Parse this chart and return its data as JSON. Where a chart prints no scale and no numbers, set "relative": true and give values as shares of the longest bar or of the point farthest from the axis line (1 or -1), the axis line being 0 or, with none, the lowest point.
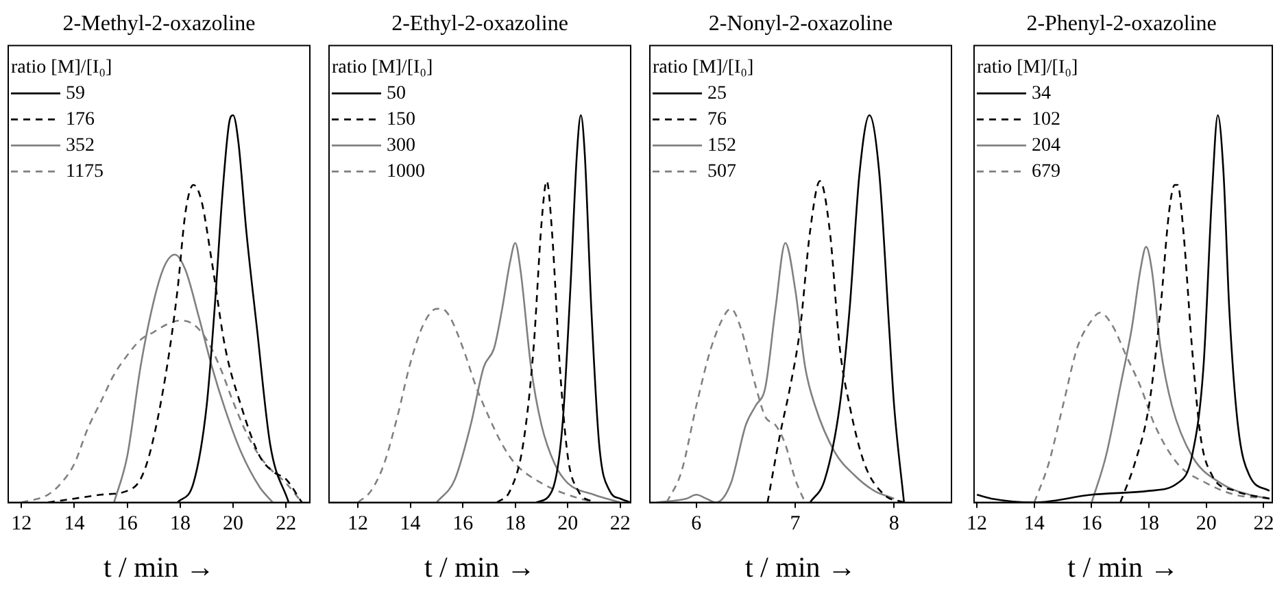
{
  "chart_data": [
    {
      "type": "line",
      "title": "2-Methyl-2-oxazoline",
      "xlabel": "t / min →",
      "legend_title": "ratio [M]/[I₀]",
      "legend": "top left",
      "relative": true,
      "marker": "none",
      "grid": false,
      "xlim": [
        11.5,
        22.9
      ],
      "xticks": [
        12,
        14,
        16,
        18,
        20,
        22
      ],
      "series": [
        {
          "name": "59",
          "color": "#000000",
          "line_style": "solid",
          "x": [
            17.9,
            18.5,
            19.0,
            19.3,
            19.6,
            19.85,
            20.0,
            20.2,
            20.5,
            20.9,
            21.4,
            22.1
          ],
          "values": [
            0,
            0.05,
            0.25,
            0.5,
            0.8,
            0.98,
            1,
            0.93,
            0.7,
            0.45,
            0.15,
            0
          ]
        },
        {
          "name": "176",
          "color": "#000000",
          "line_style": "dashed",
          "x": [
            13.0,
            14,
            15,
            16,
            16.5,
            16.9,
            17.5,
            17.9,
            18.2,
            18.5,
            18.8,
            19.2,
            19.7,
            20.3,
            21,
            21.5,
            22,
            22.6
          ],
          "values": [
            0,
            0.01,
            0.02,
            0.03,
            0.06,
            0.14,
            0.35,
            0.55,
            0.75,
            0.82,
            0.78,
            0.62,
            0.4,
            0.25,
            0.12,
            0.08,
            0.06,
            0
          ]
        },
        {
          "name": "352",
          "color": "#808080",
          "line_style": "solid",
          "x": [
            15.5,
            16,
            16.5,
            17,
            17.4,
            17.8,
            18.2,
            18.7,
            19.2,
            19.7,
            20.3,
            21,
            21.5
          ],
          "values": [
            0,
            0.12,
            0.35,
            0.52,
            0.61,
            0.64,
            0.6,
            0.48,
            0.35,
            0.24,
            0.13,
            0.04,
            0
          ]
        },
        {
          "name": "1175",
          "color": "#808080",
          "line_style": "dashed",
          "x": [
            12,
            13,
            13.5,
            14,
            14.5,
            15,
            15.5,
            16,
            16.5,
            17,
            17.5,
            18,
            18.5,
            19,
            19.5,
            20,
            20.5,
            21,
            21.5,
            22,
            22.6
          ],
          "values": [
            0,
            0.02,
            0.05,
            0.1,
            0.19,
            0.26,
            0.33,
            0.38,
            0.42,
            0.44,
            0.46,
            0.47,
            0.46,
            0.42,
            0.35,
            0.26,
            0.18,
            0.12,
            0.08,
            0.05,
            0
          ]
        }
      ]
    },
    {
      "type": "line",
      "title": "2-Ethyl-2-oxazoline",
      "xlabel": "t / min →",
      "legend_title": "ratio [M]/[I₀]",
      "legend": "top left",
      "relative": true,
      "marker": "none",
      "grid": false,
      "xlim": [
        10.9,
        22.4
      ],
      "xticks": [
        12,
        14,
        16,
        18,
        20,
        22
      ],
      "series": [
        {
          "name": "50",
          "color": "#000000",
          "line_style": "solid",
          "x": [
            18.8,
            19.4,
            19.8,
            20.1,
            20.35,
            20.5,
            20.65,
            20.9,
            21.2,
            21.6,
            22,
            22.4
          ],
          "values": [
            0,
            0.03,
            0.2,
            0.55,
            0.9,
            1,
            0.9,
            0.5,
            0.15,
            0.03,
            0.01,
            0
          ]
        },
        {
          "name": "150",
          "color": "#000000",
          "line_style": "dashed",
          "x": [
            17.3,
            17.8,
            18.3,
            18.7,
            19.0,
            19.2,
            19.4,
            19.7,
            20.0,
            20.4,
            21
          ],
          "values": [
            0,
            0.03,
            0.15,
            0.4,
            0.72,
            0.83,
            0.7,
            0.35,
            0.12,
            0.03,
            0
          ]
        },
        {
          "name": "300",
          "color": "#808080",
          "line_style": "solid",
          "x": [
            15,
            15.7,
            16.3,
            16.8,
            17.2,
            17.5,
            17.8,
            18.0,
            18.2,
            18.6,
            19,
            19.5,
            20,
            21,
            22
          ],
          "values": [
            0,
            0.06,
            0.2,
            0.35,
            0.4,
            0.5,
            0.62,
            0.67,
            0.6,
            0.35,
            0.2,
            0.1,
            0.05,
            0.02,
            0
          ]
        },
        {
          "name": "1000",
          "color": "#808080",
          "line_style": "dashed",
          "x": [
            12,
            12.5,
            13,
            13.5,
            14,
            14.5,
            15,
            15.2,
            15.5,
            16,
            16.5,
            17,
            17.5,
            18,
            19,
            20,
            21
          ],
          "values": [
            0,
            0.03,
            0.1,
            0.22,
            0.36,
            0.46,
            0.5,
            0.5,
            0.48,
            0.4,
            0.3,
            0.22,
            0.15,
            0.1,
            0.05,
            0.02,
            0
          ]
        }
      ]
    },
    {
      "type": "line",
      "title": "2-Nonyl-2-oxazoline",
      "xlabel": "t / min →",
      "legend_title": "ratio [M]/[I₀]",
      "legend": "top left",
      "relative": true,
      "marker": "none",
      "grid": false,
      "xlim": [
        5.53,
        8.58
      ],
      "xticks": [
        6,
        7,
        8
      ],
      "series": [
        {
          "name": "25",
          "color": "#000000",
          "line_style": "solid",
          "x": [
            7.15,
            7.3,
            7.45,
            7.55,
            7.65,
            7.75,
            7.85,
            7.95,
            8.0,
            8.1
          ],
          "values": [
            0,
            0.06,
            0.25,
            0.5,
            0.85,
            1,
            0.85,
            0.45,
            0.25,
            0
          ]
        },
        {
          "name": "76",
          "color": "#000000",
          "line_style": "dashed",
          "x": [
            6.72,
            6.85,
            6.95,
            7.05,
            7.15,
            7.25,
            7.35,
            7.45,
            7.55,
            7.7,
            7.9,
            8.1
          ],
          "values": [
            0,
            0.18,
            0.3,
            0.45,
            0.7,
            0.83,
            0.7,
            0.4,
            0.25,
            0.1,
            0.02,
            0
          ]
        },
        {
          "name": "152",
          "color": "#808080",
          "line_style": "solid",
          "x": [
            5.6,
            5.9,
            6.0,
            6.1,
            6.2,
            6.35,
            6.5,
            6.6,
            6.7,
            6.8,
            6.9,
            7.0,
            7.1,
            7.2,
            7.4,
            7.6,
            7.8,
            8.0
          ],
          "values": [
            0,
            0.01,
            0.02,
            0.01,
            0,
            0.05,
            0.2,
            0.25,
            0.3,
            0.5,
            0.67,
            0.55,
            0.35,
            0.25,
            0.13,
            0.07,
            0.03,
            0.01
          ]
        },
        {
          "name": "507",
          "color": "#808080",
          "line_style": "dashed",
          "x": [
            5.7,
            5.85,
            6.0,
            6.15,
            6.3,
            6.35,
            6.45,
            6.6,
            6.7,
            6.8,
            6.9,
            7.0,
            7.1
          ],
          "values": [
            0,
            0.08,
            0.25,
            0.4,
            0.49,
            0.5,
            0.45,
            0.3,
            0.22,
            0.2,
            0.15,
            0.06,
            0
          ]
        }
      ]
    },
    {
      "type": "line",
      "title": "2-Phenyl-2-oxazoline",
      "xlabel": "t / min →",
      "legend_title": "ratio [M]/[I₀]",
      "legend": "top left",
      "relative": true,
      "marker": "none",
      "grid": false,
      "xlim": [
        11.9,
        22.3
      ],
      "xticks": [
        12,
        14,
        16,
        18,
        20,
        22
      ],
      "series": [
        {
          "name": "34",
          "color": "#000000",
          "line_style": "solid",
          "x": [
            12,
            12.5,
            14,
            16,
            18,
            19,
            19.5,
            19.9,
            20.2,
            20.4,
            20.6,
            20.8,
            21.1,
            21.5,
            22.2
          ],
          "values": [
            0.02,
            0.01,
            0,
            0.02,
            0.03,
            0.05,
            0.12,
            0.35,
            0.8,
            1,
            0.85,
            0.5,
            0.2,
            0.07,
            0.03
          ]
        },
        {
          "name": "102",
          "color": "#000000",
          "line_style": "dashed",
          "x": [
            17,
            17.5,
            18,
            18.4,
            18.7,
            18.9,
            19.0,
            19.2,
            19.5,
            19.8,
            20.2,
            21,
            22.2
          ],
          "values": [
            0,
            0.1,
            0.25,
            0.5,
            0.75,
            0.82,
            0.82,
            0.7,
            0.4,
            0.17,
            0.07,
            0.03,
            0.01
          ]
        },
        {
          "name": "204",
          "color": "#808080",
          "line_style": "solid",
          "x": [
            16,
            16.5,
            17,
            17.4,
            17.7,
            17.9,
            18.1,
            18.4,
            18.8,
            19.5,
            20.5,
            21.5,
            22.2
          ],
          "values": [
            0,
            0.12,
            0.3,
            0.45,
            0.6,
            0.66,
            0.6,
            0.4,
            0.25,
            0.12,
            0.05,
            0.02,
            0.01
          ]
        },
        {
          "name": "679",
          "color": "#808080",
          "line_style": "dashed",
          "x": [
            14,
            14.5,
            15,
            15.5,
            16,
            16.3,
            16.7,
            17.2,
            17.7,
            18.2,
            19,
            20,
            21,
            22.2
          ],
          "values": [
            0,
            0.1,
            0.25,
            0.4,
            0.47,
            0.49,
            0.46,
            0.38,
            0.3,
            0.2,
            0.1,
            0.05,
            0.02,
            0.01
          ]
        }
      ]
    }
  ]
}
